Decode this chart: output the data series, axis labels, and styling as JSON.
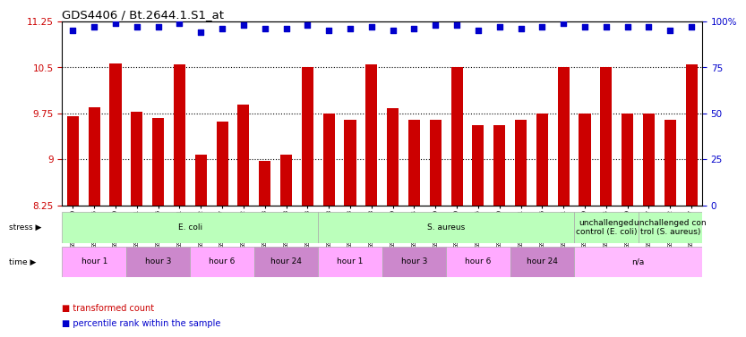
{
  "title": "GDS4406 / Bt.2644.1.S1_at",
  "samples": [
    "GSM624020",
    "GSM624025",
    "GSM624030",
    "GSM624021",
    "GSM624026",
    "GSM624031",
    "GSM624022",
    "GSM624027",
    "GSM624032",
    "GSM624023",
    "GSM624028",
    "GSM624033",
    "GSM624048",
    "GSM624053",
    "GSM624058",
    "GSM624049",
    "GSM624054",
    "GSM624059",
    "GSM624050",
    "GSM624055",
    "GSM624060",
    "GSM624051",
    "GSM624056",
    "GSM624061",
    "GSM624019",
    "GSM624024",
    "GSM624029",
    "GSM624047",
    "GSM624052",
    "GSM624057"
  ],
  "bar_values": [
    9.7,
    9.85,
    10.57,
    9.78,
    9.68,
    10.55,
    9.07,
    9.62,
    9.9,
    8.97,
    9.08,
    10.5,
    9.75,
    9.65,
    10.55,
    9.83,
    9.65,
    9.65,
    10.5,
    9.55,
    9.55,
    9.65,
    9.75,
    10.5,
    9.75,
    10.5,
    9.75,
    9.75,
    9.65,
    10.55
  ],
  "dot_values": [
    95,
    97,
    99,
    97,
    97,
    99,
    94,
    96,
    98,
    96,
    96,
    98,
    95,
    96,
    97,
    95,
    96,
    98,
    98,
    95,
    97,
    96,
    97,
    99,
    97,
    97,
    97,
    97,
    95,
    97
  ],
  "bar_color": "#cc0000",
  "dot_color": "#0000cc",
  "ymin": 8.25,
  "ymax": 11.25,
  "yticks_left": [
    8.25,
    9.0,
    9.75,
    10.5,
    11.25
  ],
  "ytick_labels_left": [
    "8.25",
    "9",
    "9.75",
    "10.5",
    "11.25"
  ],
  "yticks_right": [
    0,
    25,
    50,
    75,
    100
  ],
  "ytick_labels_right": [
    "0",
    "25",
    "50",
    "75",
    "100%"
  ],
  "stress_groups": [
    {
      "text": "E. coli",
      "start": 0,
      "end": 12,
      "color": "#bbffbb"
    },
    {
      "text": "S. aureus",
      "start": 12,
      "end": 24,
      "color": "#bbffbb"
    },
    {
      "text": "unchallenged\ncontrol (E. coli)",
      "start": 24,
      "end": 27,
      "color": "#bbffbb"
    },
    {
      "text": "unchallenged con\ntrol (S. aureus)",
      "start": 27,
      "end": 30,
      "color": "#bbffbb"
    }
  ],
  "time_groups": [
    {
      "text": "hour 1",
      "start": 0,
      "end": 3,
      "color": "#ffaaff"
    },
    {
      "text": "hour 3",
      "start": 3,
      "end": 6,
      "color": "#cc88cc"
    },
    {
      "text": "hour 6",
      "start": 6,
      "end": 9,
      "color": "#ffaaff"
    },
    {
      "text": "hour 24",
      "start": 9,
      "end": 12,
      "color": "#cc88cc"
    },
    {
      "text": "hour 1",
      "start": 12,
      "end": 15,
      "color": "#ffaaff"
    },
    {
      "text": "hour 3",
      "start": 15,
      "end": 18,
      "color": "#cc88cc"
    },
    {
      "text": "hour 6",
      "start": 18,
      "end": 21,
      "color": "#ffaaff"
    },
    {
      "text": "hour 24",
      "start": 21,
      "end": 24,
      "color": "#cc88cc"
    },
    {
      "text": "n/a",
      "start": 24,
      "end": 30,
      "color": "#ffbbff"
    }
  ]
}
